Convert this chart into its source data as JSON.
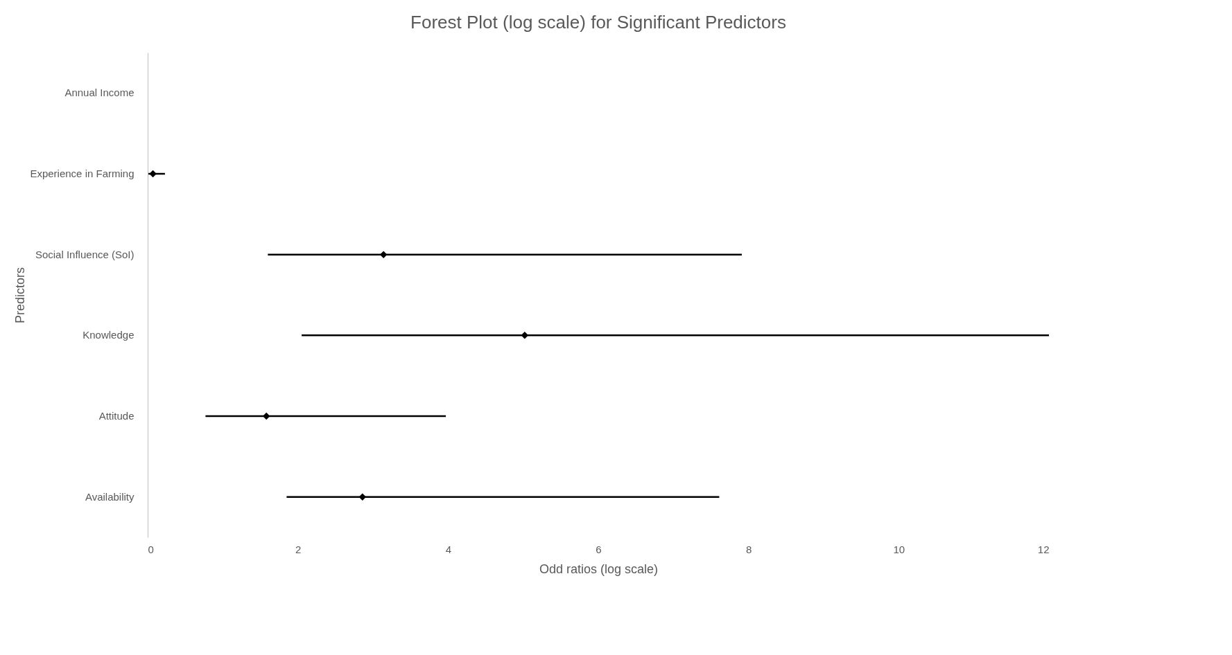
{
  "chart_data": {
    "type": "scatter",
    "orientation": "horizontal",
    "title": "Forest Plot (log scale) for Significant Predictors",
    "xlabel": "Odd ratios (log scale)",
    "ylabel": "Predictors",
    "categories": [
      "Annual Income",
      "Experience in Farming",
      "Social Influence (SoI)",
      "Knowledge",
      "Attitude",
      "Availability"
    ],
    "values": [
      null,
      0.07,
      3.14,
      5.02,
      1.58,
      2.86
    ],
    "errors": [
      null,
      [
        0.01,
        0.23
      ],
      [
        1.6,
        7.91
      ],
      [
        2.05,
        12.0
      ],
      [
        0.77,
        3.97
      ],
      [
        1.85,
        7.61
      ]
    ],
    "color": "#000000",
    "marker": "diamond",
    "grid": false,
    "xlim": [
      0,
      12
    ],
    "xticks": [
      0,
      2,
      4,
      6,
      8,
      10,
      12
    ]
  }
}
